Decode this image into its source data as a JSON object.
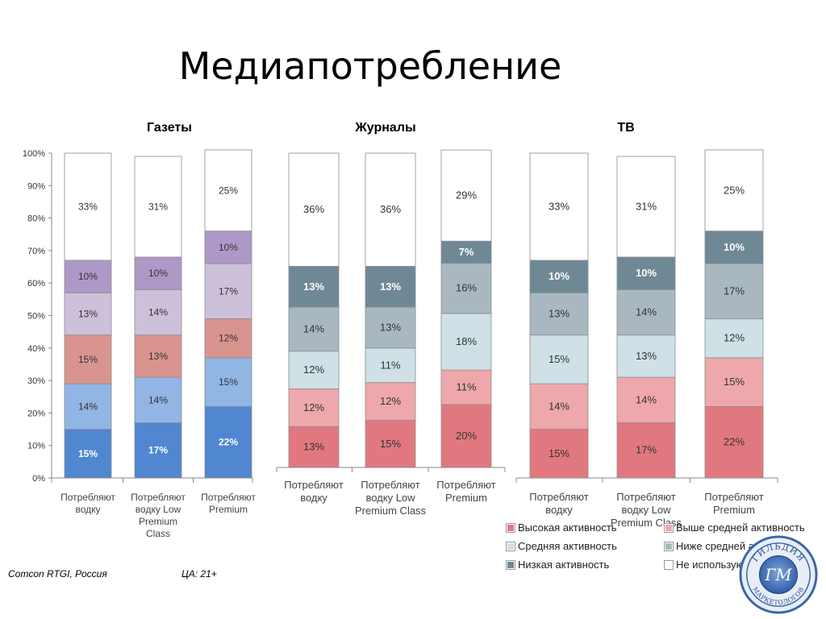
{
  "title": "Медиапотребление",
  "footer": {
    "source": "Comcon RTGI, Россия",
    "audience": "ЦА: 21+"
  },
  "legend": [
    {
      "label": "Высокая активность",
      "color": "#e17880"
    },
    {
      "label": "Выше средней активность",
      "color": "#eea8ab"
    },
    {
      "label": "Средняя активность",
      "color": "#cfe0e6"
    },
    {
      "label": "Ниже средней активность",
      "color": "#a9b8c0"
    },
    {
      "label": "Низкая активность",
      "color": "#6f8896"
    },
    {
      "label": "Не используют",
      "color": "#ffffff"
    }
  ],
  "chart_data": [
    {
      "type": "bar",
      "stacked": true,
      "title": "Газеты",
      "categories": [
        "Потребляют водку",
        "Потребляют водку Low Premium Class",
        "Потребляют Premium"
      ],
      "y_ticks": [
        "0%",
        "10%",
        "20%",
        "30%",
        "40%",
        "50%",
        "60%",
        "70%",
        "80%",
        "90%",
        "100%"
      ],
      "ylim": [
        0,
        100
      ],
      "series": [
        {
          "name": "Высокая активность",
          "color": "#5186d1",
          "values": [
            15,
            17,
            22
          ]
        },
        {
          "name": "Выше средней активность",
          "color": "#91b5e4",
          "values": [
            14,
            14,
            15
          ]
        },
        {
          "name": "Средняя активность",
          "color": "#d99490",
          "values": [
            15,
            13,
            12
          ]
        },
        {
          "name": "Ниже средней активность",
          "color": "#cdc0db",
          "values": [
            13,
            14,
            17
          ]
        },
        {
          "name": "Низкая активность",
          "color": "#ae98c7",
          "values": [
            10,
            10,
            10
          ]
        },
        {
          "name": "Не используют",
          "color": "#ffffff",
          "values": [
            33,
            31,
            25
          ]
        }
      ],
      "data_labels": [
        [
          "15%",
          "14%",
          "15%",
          "13%",
          "10%",
          "33%"
        ],
        [
          "17%",
          "14%",
          "13%",
          "14%",
          "10%",
          "31%"
        ],
        [
          "22%",
          "15%",
          "12%",
          "17%",
          "10%",
          "25%"
        ]
      ]
    },
    {
      "type": "bar",
      "stacked": true,
      "title": "Журналы",
      "categories": [
        "Потребляют водку",
        "Потребляют водку Low Premium Class",
        "Потребляют Premium"
      ],
      "ylim": [
        0,
        100
      ],
      "series": [
        {
          "name": "Высокая активность",
          "color": "#e17880",
          "values": [
            13,
            15,
            20
          ]
        },
        {
          "name": "Выше средней активность",
          "color": "#eea8ab",
          "values": [
            12,
            12,
            11
          ]
        },
        {
          "name": "Средняя активность",
          "color": "#cfe0e6",
          "values": [
            12,
            11,
            18
          ]
        },
        {
          "name": "Ниже средней активность",
          "color": "#a9b8c0",
          "values": [
            14,
            13,
            16
          ]
        },
        {
          "name": "Низкая активность",
          "color": "#6f8896",
          "values": [
            13,
            13,
            7
          ]
        },
        {
          "name": "Не используют",
          "color": "#ffffff",
          "values": [
            36,
            36,
            29
          ]
        }
      ],
      "data_labels": [
        [
          "13%",
          "12%",
          "12%",
          "14%",
          "13%",
          "36%"
        ],
        [
          "15%",
          "12%",
          "11%",
          "13%",
          "13%",
          "36%"
        ],
        [
          "20%",
          "11%",
          "18%",
          "16%",
          "7%",
          "29%"
        ]
      ]
    },
    {
      "type": "bar",
      "stacked": true,
      "title": "ТВ",
      "categories": [
        "Потребляют водку",
        "Потребляют водку Low Premium Class",
        "Потребляют Premium"
      ],
      "ylim": [
        0,
        100
      ],
      "series": [
        {
          "name": "Высокая активность",
          "color": "#e17880",
          "values": [
            15,
            17,
            22
          ]
        },
        {
          "name": "Выше средней активность",
          "color": "#eea8ab",
          "values": [
            14,
            14,
            15
          ]
        },
        {
          "name": "Средняя активность",
          "color": "#cfe0e6",
          "values": [
            15,
            13,
            12
          ]
        },
        {
          "name": "Ниже средней активность",
          "color": "#a9b8c0",
          "values": [
            13,
            14,
            17
          ]
        },
        {
          "name": "Низкая активность",
          "color": "#6f8896",
          "values": [
            10,
            10,
            10
          ]
        },
        {
          "name": "Не используют",
          "color": "#ffffff",
          "values": [
            33,
            31,
            25
          ]
        }
      ],
      "data_labels": [
        [
          "15%",
          "14%",
          "15%",
          "13%",
          "10%",
          "33%"
        ],
        [
          "17%",
          "14%",
          "13%",
          "14%",
          "10%",
          "31%"
        ],
        [
          "22%",
          "15%",
          "12%",
          "17%",
          "10%",
          "25%"
        ]
      ]
    }
  ],
  "logo": {
    "top_text": "ГИЛЬДИЯ",
    "monogram": "ГМ",
    "bottom_text": "МАРКЕТОЛОГОВ"
  }
}
